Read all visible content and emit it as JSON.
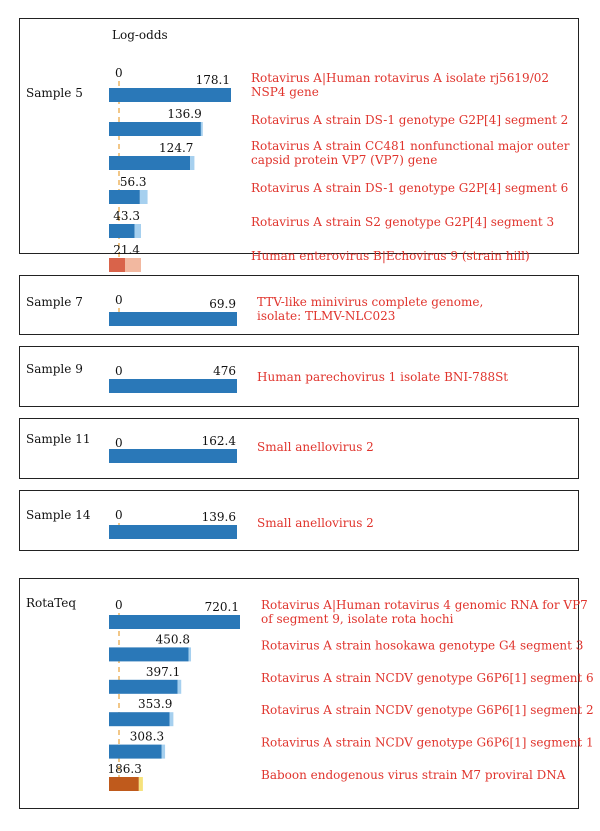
{
  "chart_data": {
    "type": "bar",
    "axis_label": "Log-odds",
    "zero_label": "0",
    "colors": {
      "rotavirus": "#2a78b8",
      "rotavirus_tip": "#a6d0ef",
      "enterovirus": "#d9634a",
      "enterovirus_tip": "#f2b8a0",
      "baboon": "#bf5a1c",
      "baboon_tip": "#f6e27c",
      "text_red": "#e0342d",
      "zero_line": "#e8a23a"
    },
    "panels": [
      {
        "sample": "Sample 5",
        "bars": [
          {
            "value": 178.1,
            "label": "178.1",
            "name_lines": [
              "Rotavirus A|Human rotavirus A isolate rj5619/02",
              "NSP4 gene"
            ],
            "tip": 0,
            "color": "rotavirus"
          },
          {
            "value": 136.9,
            "label": "136.9",
            "name_lines": [
              "Rotavirus A strain DS-1 genotype G2P[4] segment 2"
            ],
            "tip": 0.02,
            "color": "rotavirus"
          },
          {
            "value": 124.7,
            "label": "124.7",
            "name_lines": [
              "Rotavirus A strain CC481 nonfunctional major outer",
              "capsid protein VP7 (VP7) gene"
            ],
            "tip": 0.05,
            "color": "rotavirus"
          },
          {
            "value": 56.3,
            "label": "56.3",
            "name_lines": [
              "Rotavirus A strain DS-1 genotype G2P[4] segment 6"
            ],
            "tip": 0.2,
            "color": "rotavirus"
          },
          {
            "value": 43.3,
            "label": "43.3",
            "name_lines": [
              "Rotavirus A strain S2 genotype G2P[4] segment 3"
            ],
            "tip": 0.2,
            "color": "rotavirus"
          },
          {
            "value": 21.4,
            "label": "21.4",
            "name_lines": [
              "Human enterovirus B|Echovirus 9 (strain hill)"
            ],
            "tip": 0.5,
            "color": "enterovirus"
          }
        ]
      },
      {
        "sample": "Sample 7",
        "bars": [
          {
            "value": 69.9,
            "label": "69.9",
            "name_lines": [
              "TTV-like minivirus complete genome,",
              "isolate: TLMV-NLC023"
            ],
            "tip": 0,
            "color": "rotavirus"
          }
        ]
      },
      {
        "sample": "Sample 9",
        "bars": [
          {
            "value": 476,
            "label": "476",
            "name_lines": [
              "Human parechovirus 1 isolate BNI-788St"
            ],
            "tip": 0,
            "color": "rotavirus"
          }
        ]
      },
      {
        "sample": "Sample 11",
        "bars": [
          {
            "value": 162.4,
            "label": "162.4",
            "name_lines": [
              "Small anellovirus 2"
            ],
            "tip": 0,
            "color": "rotavirus"
          }
        ]
      },
      {
        "sample": "Sample 14",
        "bars": [
          {
            "value": 139.6,
            "label": "139.6",
            "name_lines": [
              "Small anellovirus 2"
            ],
            "tip": 0,
            "color": "rotavirus"
          }
        ]
      },
      {
        "sample": "RotaTeq",
        "bars": [
          {
            "value": 720.1,
            "label": "720.1",
            "name_lines": [
              "Rotavirus A|Human rotavirus 4 genomic RNA for VP7",
              "of segment 9, isolate rota hochi"
            ],
            "tip": 0,
            "color": "rotavirus"
          },
          {
            "value": 450.8,
            "label": "450.8",
            "name_lines": [
              "Rotavirus A strain hosokawa genotype G4 segment 3"
            ],
            "tip": 0.03,
            "color": "rotavirus"
          },
          {
            "value": 397.1,
            "label": "397.1",
            "name_lines": [
              "Rotavirus A strain NCDV genotype G6P6[1] segment 6"
            ],
            "tip": 0.05,
            "color": "rotavirus"
          },
          {
            "value": 353.9,
            "label": "353.9",
            "name_lines": [
              "Rotavirus A strain NCDV genotype G6P6[1] segment 2"
            ],
            "tip": 0.06,
            "color": "rotavirus"
          },
          {
            "value": 308.3,
            "label": "308.3",
            "name_lines": [
              "Rotavirus A strain NCDV genotype G6P6[1] segment 1"
            ],
            "tip": 0.06,
            "color": "rotavirus"
          },
          {
            "value": 186.3,
            "label": "186.3",
            "name_lines": [
              "Baboon endogenous virus strain M7 proviral DNA"
            ],
            "tip": 0.12,
            "color": "baboon"
          }
        ]
      }
    ]
  }
}
